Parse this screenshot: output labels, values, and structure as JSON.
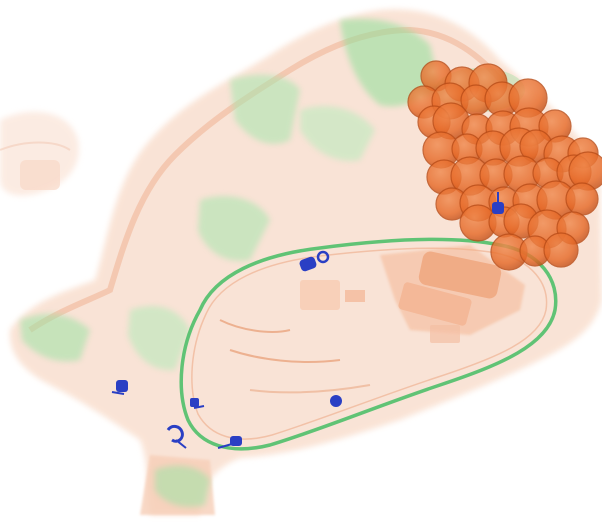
{
  "scan": {
    "kind": "xray-baggage-scan",
    "colors": {
      "background": "#ffffff",
      "organic": "#f2a27a",
      "organic_light": "#f9d9c6",
      "dense_organic": "#e8712f",
      "inorganic": "#8fe09a",
      "metal": "#2a3fc4"
    },
    "objects": [
      "bag-outline",
      "bag-handle",
      "bottle-cluster",
      "oval-frame",
      "device-block",
      "zipper-pulls"
    ]
  }
}
